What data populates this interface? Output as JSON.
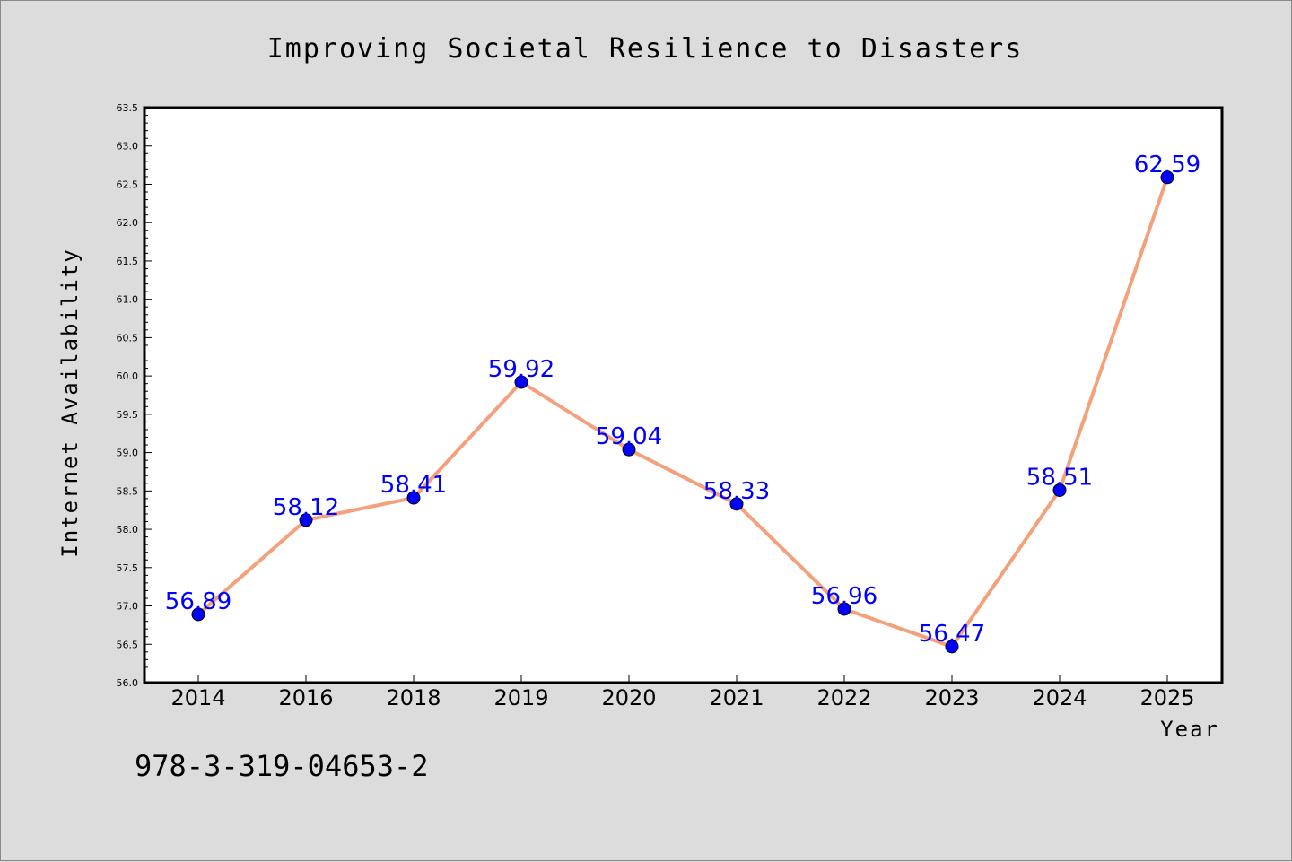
{
  "chart_data": {
    "type": "line",
    "title": "Improving Societal Resilience to Disasters",
    "xlabel": "Year",
    "ylabel": "Internet Availability",
    "categories": [
      "2014",
      "2016",
      "2018",
      "2019",
      "2020",
      "2021",
      "2022",
      "2023",
      "2024",
      "2025"
    ],
    "values": [
      56.89,
      58.12,
      58.41,
      59.92,
      59.04,
      58.33,
      56.96,
      56.47,
      58.51,
      62.59
    ],
    "data_labels": [
      "56.89",
      "58.12",
      "58.41",
      "59.92",
      "59.04",
      "58.33",
      "56.96",
      "56.47",
      "58.51",
      "62.59"
    ],
    "ylim": [
      56.0,
      63.5
    ],
    "yticks": [
      "56.0",
      "56.5",
      "57.0",
      "57.5",
      "58.0",
      "58.5",
      "59.0",
      "59.5",
      "60.0",
      "60.5",
      "61.0",
      "61.5",
      "62.0",
      "62.5",
      "63.0",
      "63.5"
    ],
    "grid": false,
    "line_color": "#f4a07a",
    "marker_color": "#0000ff",
    "label_color": "#0000ff",
    "background_color": "#dcdcdc",
    "plot_background": "#ffffff"
  },
  "footer": {
    "isbn": "978-3-319-04653-2"
  }
}
